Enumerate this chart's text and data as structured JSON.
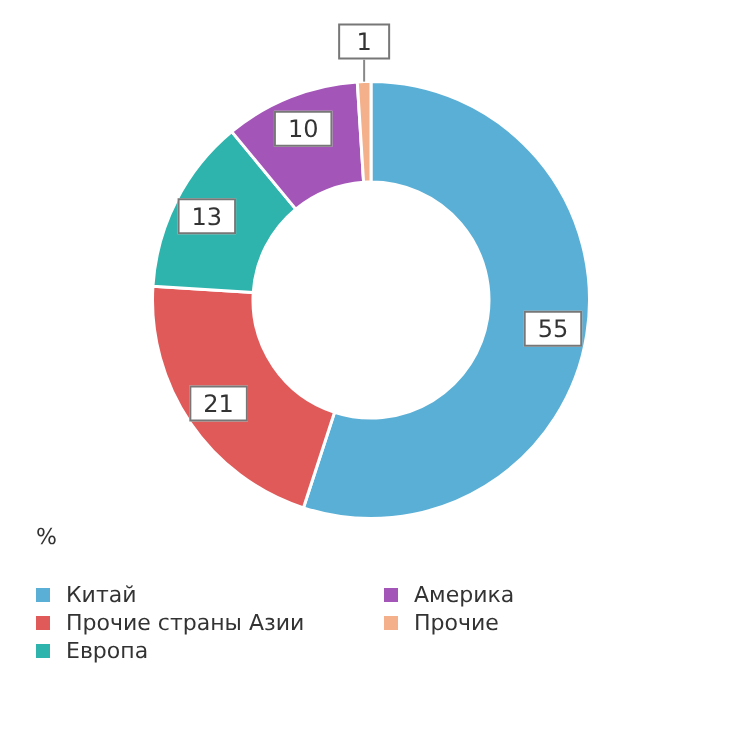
{
  "chart_data": {
    "type": "donut",
    "legend_title": "%",
    "legend": "bottom",
    "data_labels": true,
    "categories": [
      "Китай",
      "Прочие страны Азии",
      "Европа",
      "Америка",
      "Прочие"
    ],
    "values": [
      55,
      21,
      13,
      10,
      1
    ],
    "colors": [
      "#5aafd6",
      "#e05a5a",
      "#2fb3ad",
      "#a455b8",
      "#f4b08a"
    ]
  }
}
